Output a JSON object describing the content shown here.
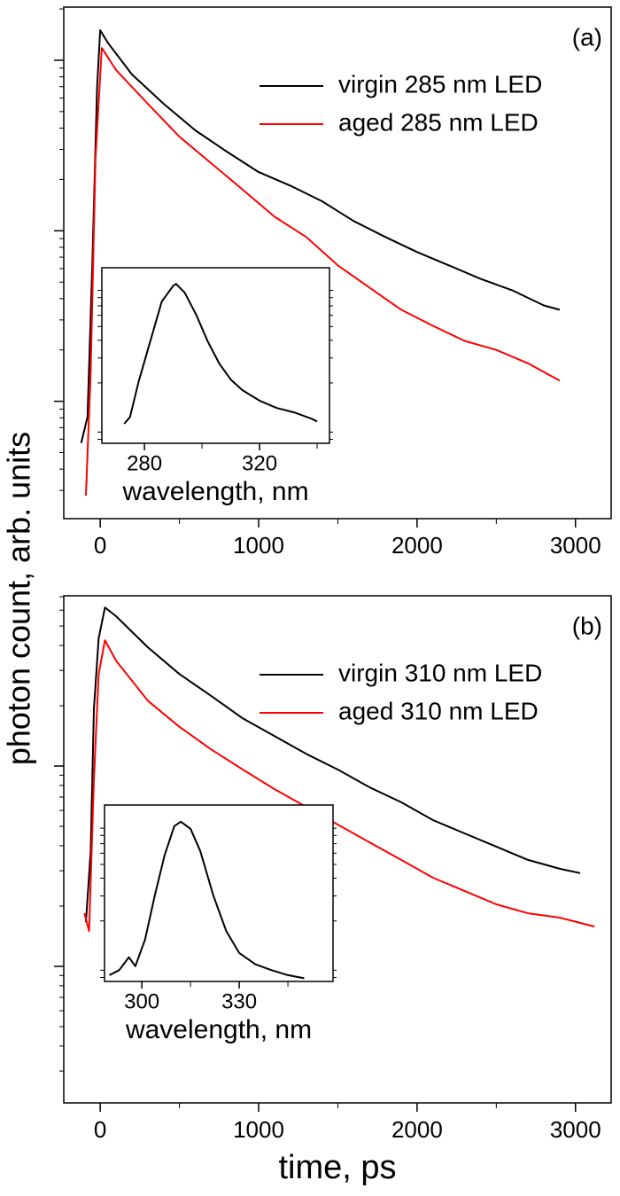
{
  "chart_data": [
    {
      "type": "line",
      "panel_label": "(a)",
      "ylabel": "photon count, arb. units",
      "log_y": true,
      "legend": "upper right",
      "xlim": [
        -230,
        3225
      ],
      "xticks": [
        0,
        1000,
        2000,
        3000
      ],
      "ylim": [
        20.5,
        20500
      ],
      "yticks": [
        100,
        1000,
        10000
      ],
      "series": [
        {
          "name": "virgin 285 nm LED",
          "color": "#000000",
          "x": [
            -120,
            -80,
            -50,
            -20,
            0,
            50,
            200,
            400,
            600,
            800,
            1000,
            1200,
            1400,
            1600,
            1800,
            2000,
            2200,
            2400,
            2600,
            2800,
            2900
          ],
          "values": [
            57,
            81,
            627,
            6900,
            15000,
            12600,
            8260,
            5560,
            3880,
            2910,
            2210,
            1840,
            1490,
            1140,
            920,
            750,
            627,
            523,
            448,
            365,
            344
          ]
        },
        {
          "name": "aged 285 nm LED",
          "color": "#ff0000",
          "x": [
            -90,
            -60,
            -30,
            10,
            100,
            300,
            500,
            700,
            900,
            1100,
            1300,
            1500,
            1700,
            1900,
            2100,
            2300,
            2500,
            2700,
            2900
          ],
          "values": [
            28,
            149,
            2640,
            11800,
            8770,
            5560,
            3560,
            2490,
            1740,
            1210,
            920,
            627,
            464,
            344,
            277,
            226,
            200,
            167,
            132
          ]
        }
      ]
    },
    {
      "type": "line",
      "xlabel": "wavelength, nm",
      "log_y": true,
      "xlim": [
        265.2,
        344.3
      ],
      "xticks": [
        280,
        320
      ],
      "ylim": [
        0.075,
        1.3
      ],
      "series": [
        {
          "color": "#000000",
          "x": [
            273,
            275,
            278,
            282,
            286,
            290,
            291,
            294,
            298,
            302,
            306,
            310,
            314,
            320,
            326,
            332,
            338,
            340
          ],
          "values": [
            0.103,
            0.115,
            0.205,
            0.392,
            0.75,
            0.97,
            1,
            0.866,
            0.604,
            0.392,
            0.274,
            0.211,
            0.178,
            0.15,
            0.133,
            0.124,
            0.112,
            0.107
          ]
        }
      ]
    },
    {
      "type": "line",
      "panel_label": "(b)",
      "xlabel": "time, ps",
      "log_y": true,
      "legend": "upper right",
      "xlim": [
        -230,
        3225
      ],
      "xticks": [
        0,
        1000,
        2000,
        3000
      ],
      "ylim": [
        20.8,
        7080
      ],
      "yticks": [
        100,
        1000
      ],
      "series": [
        {
          "name": "virgin 310 nm LED",
          "color": "#000000",
          "x": [
            -90,
            -60,
            -40,
            -10,
            30,
            100,
            300,
            500,
            700,
            900,
            1100,
            1300,
            1500,
            1700,
            1900,
            2100,
            2300,
            2500,
            2700,
            2900,
            3030
          ],
          "values": [
            166,
            376,
            1920,
            4340,
            6190,
            5600,
            3920,
            2880,
            2240,
            1730,
            1410,
            1150,
            960,
            783,
            659,
            537,
            461,
            396,
            340,
            307,
            292
          ]
        },
        {
          "name": "aged 310 nm LED",
          "color": "#ff0000",
          "x": [
            -100,
            -70,
            -40,
            -10,
            30,
            100,
            300,
            500,
            700,
            900,
            1100,
            1300,
            1500,
            1700,
            1900,
            2100,
            2300,
            2500,
            2700,
            2900,
            3120
          ],
          "values": [
            184,
            150,
            849,
            2880,
            4250,
            3360,
            2120,
            1570,
            1210,
            960,
            767,
            625,
            510,
            416,
            340,
            277,
            238,
            204,
            184,
            175,
            158
          ]
        }
      ]
    },
    {
      "type": "line",
      "xlabel": "wavelength, nm",
      "log_y": true,
      "xlim": [
        288.5,
        358.9
      ],
      "xticks": [
        300,
        330
      ],
      "ylim": [
        0.075,
        1.31
      ],
      "series": [
        {
          "color": "#000000",
          "x": [
            290,
            293,
            296,
            298,
            301,
            304,
            307,
            310,
            312,
            315,
            318,
            322,
            326,
            330,
            335,
            340,
            345,
            350
          ],
          "values": [
            0.083,
            0.09,
            0.111,
            0.096,
            0.148,
            0.303,
            0.579,
            0.93,
            1,
            0.891,
            0.622,
            0.303,
            0.17,
            0.119,
            0.099,
            0.09,
            0.083,
            0.079
          ]
        }
      ]
    }
  ]
}
